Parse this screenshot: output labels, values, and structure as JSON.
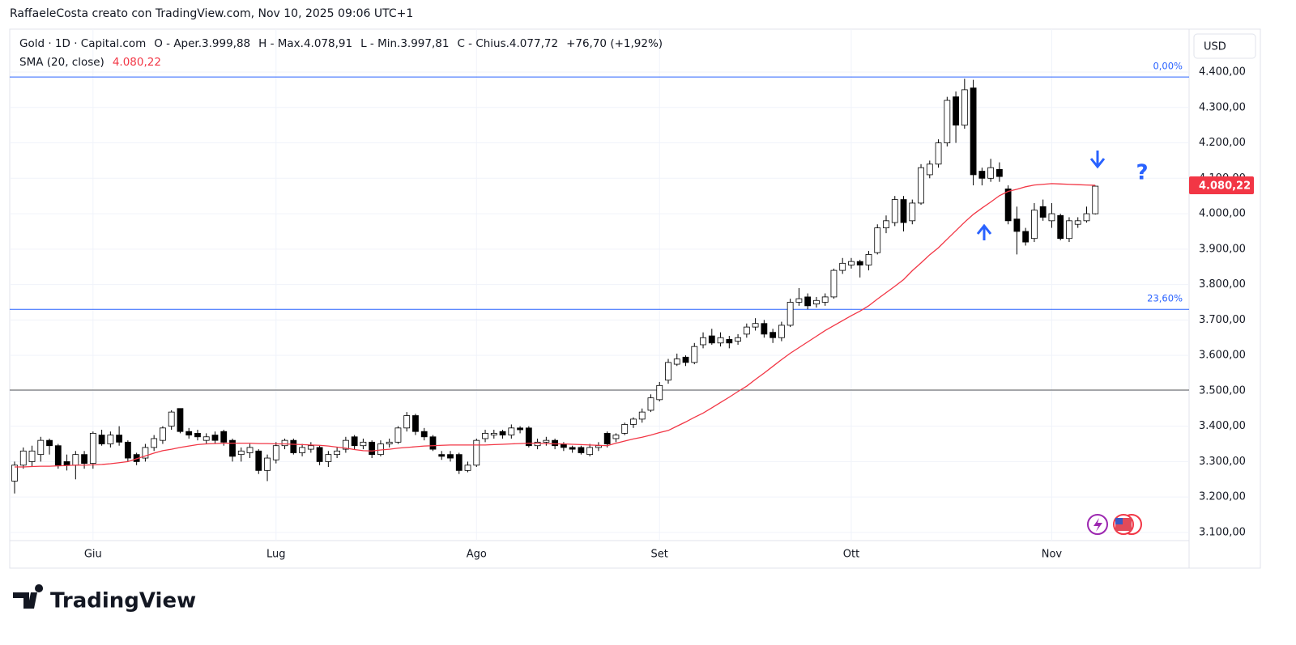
{
  "header": "RaffaeleCosta creato con TradingView.com, Nov 10, 2025 09:06 UTC+1",
  "logo": "TradingView",
  "chart_data": {
    "type": "candlestick",
    "legend_title": "Gold · 1D · Capital.com",
    "ohlc_text": [
      "O - Aper.3.999,88",
      "H - Max.4.078,91",
      "L - Min.3.997,81",
      "C - Chius.4.077,72"
    ],
    "change_text": "+76,70 (+1,92%)",
    "currency": "USD",
    "categories": [
      null,
      null,
      null,
      null,
      null,
      null,
      null,
      null,
      null,
      "Giu",
      null,
      null,
      null,
      null,
      null,
      null,
      null,
      null,
      null,
      null,
      null,
      null,
      null,
      null,
      null,
      null,
      null,
      null,
      null,
      null,
      "Lug",
      null,
      null,
      null,
      null,
      null,
      null,
      null,
      null,
      null,
      null,
      null,
      null,
      null,
      null,
      null,
      null,
      null,
      null,
      null,
      null,
      null,
      null,
      "Ago",
      null,
      null,
      null,
      null,
      null,
      null,
      null,
      null,
      null,
      null,
      null,
      null,
      null,
      null,
      null,
      null,
      null,
      null,
      null,
      null,
      "Set",
      null,
      null,
      null,
      null,
      null,
      null,
      null,
      null,
      null,
      null,
      null,
      null,
      null,
      null,
      null,
      null,
      null,
      null,
      null,
      null,
      null,
      "Ott",
      null,
      null,
      null,
      null,
      null,
      null,
      null,
      null,
      null,
      null,
      null,
      null,
      null,
      null,
      null,
      null,
      null,
      null,
      null,
      null,
      null,
      null,
      "Nov",
      null,
      null,
      null,
      null,
      null
    ],
    "open": [
      3245,
      3290,
      3300,
      3320,
      3360,
      3345,
      3300,
      3290,
      3320,
      3295,
      3375,
      3350,
      3375,
      3355,
      3320,
      3310,
      3340,
      3360,
      3400,
      3450,
      3385,
      3380,
      3360,
      3375,
      3385,
      3360,
      3320,
      3325,
      3330,
      3275,
      3305,
      3345,
      3360,
      3325,
      3335,
      3340,
      3300,
      3320,
      3335,
      3370,
      3345,
      3355,
      3320,
      3350,
      3355,
      3395,
      3430,
      3385,
      3370,
      3320,
      3320,
      3320,
      3275,
      3290,
      3365,
      3375,
      3385,
      3375,
      3395,
      3395,
      3345,
      3355,
      3360,
      3350,
      3340,
      3340,
      3320,
      3340,
      3380,
      3365,
      3380,
      3405,
      3420,
      3445,
      3475,
      3530,
      3575,
      3595,
      3580,
      3630,
      3655,
      3635,
      3645,
      3640,
      3660,
      3680,
      3690,
      3665,
      3650,
      3685,
      3750,
      3765,
      3745,
      3750,
      3765,
      3840,
      3855,
      3865,
      3855,
      3890,
      3960,
      3975,
      4040,
      3980,
      4030,
      4110,
      4140,
      4200,
      4330,
      4250,
      4355,
      4120,
      4100,
      4125,
      4070,
      3985,
      3950,
      3930,
      4020,
      3980,
      3995,
      3930,
      3970,
      3980,
      3999.88
    ],
    "high": [
      3300,
      3340,
      3345,
      3370,
      3365,
      3350,
      3320,
      3330,
      3330,
      3385,
      3390,
      3385,
      3400,
      3360,
      3325,
      3350,
      3375,
      3400,
      3445,
      3450,
      3395,
      3390,
      3380,
      3385,
      3390,
      3365,
      3340,
      3350,
      3335,
      3320,
      3355,
      3365,
      3365,
      3350,
      3355,
      3345,
      3330,
      3340,
      3370,
      3375,
      3365,
      3360,
      3360,
      3365,
      3400,
      3440,
      3435,
      3395,
      3375,
      3330,
      3330,
      3325,
      3300,
      3365,
      3390,
      3390,
      3390,
      3405,
      3400,
      3400,
      3365,
      3370,
      3365,
      3355,
      3345,
      3345,
      3350,
      3355,
      3385,
      3380,
      3410,
      3425,
      3450,
      3490,
      3525,
      3590,
      3605,
      3600,
      3635,
      3665,
      3675,
      3665,
      3655,
      3660,
      3690,
      3705,
      3700,
      3675,
      3695,
      3760,
      3790,
      3775,
      3765,
      3775,
      3845,
      3875,
      3875,
      3870,
      3895,
      3970,
      3995,
      4050,
      4050,
      4040,
      4140,
      4150,
      4210,
      4330,
      4345,
      4381,
      4378,
      4130,
      4155,
      4145,
      4080,
      4020,
      3960,
      4030,
      4040,
      4030,
      4000,
      3990,
      3990,
      4020,
      4078.91
    ],
    "low": [
      3210,
      3280,
      3285,
      3300,
      3320,
      3280,
      3275,
      3250,
      3280,
      3280,
      3345,
      3340,
      3345,
      3300,
      3290,
      3300,
      3330,
      3350,
      3390,
      3380,
      3365,
      3360,
      3350,
      3350,
      3345,
      3300,
      3300,
      3310,
      3265,
      3245,
      3295,
      3335,
      3320,
      3315,
      3325,
      3290,
      3285,
      3310,
      3325,
      3335,
      3335,
      3310,
      3315,
      3340,
      3350,
      3385,
      3375,
      3360,
      3330,
      3305,
      3300,
      3265,
      3270,
      3285,
      3355,
      3365,
      3365,
      3365,
      3380,
      3340,
      3335,
      3345,
      3335,
      3330,
      3325,
      3320,
      3315,
      3330,
      3340,
      3355,
      3375,
      3395,
      3410,
      3440,
      3470,
      3520,
      3570,
      3570,
      3575,
      3620,
      3630,
      3625,
      3620,
      3630,
      3650,
      3670,
      3650,
      3635,
      3640,
      3680,
      3740,
      3730,
      3735,
      3740,
      3760,
      3830,
      3845,
      3820,
      3840,
      3885,
      3945,
      3965,
      3950,
      3970,
      4025,
      4100,
      4130,
      4190,
      4200,
      4240,
      4080,
      4080,
      4090,
      4090,
      3970,
      3885,
      3910,
      3920,
      3980,
      3960,
      3925,
      3920,
      3960,
      3975,
      3997.81
    ],
    "close": [
      3290,
      3330,
      3330,
      3360,
      3345,
      3290,
      3290,
      3320,
      3295,
      3380,
      3350,
      3375,
      3355,
      3310,
      3300,
      3340,
      3365,
      3395,
      3440,
      3385,
      3375,
      3370,
      3370,
      3360,
      3355,
      3315,
      3330,
      3340,
      3275,
      3310,
      3345,
      3360,
      3325,
      3340,
      3345,
      3300,
      3320,
      3330,
      3360,
      3345,
      3355,
      3320,
      3350,
      3355,
      3395,
      3430,
      3385,
      3370,
      3335,
      3315,
      3310,
      3275,
      3290,
      3360,
      3380,
      3380,
      3375,
      3395,
      3390,
      3345,
      3355,
      3360,
      3345,
      3340,
      3335,
      3325,
      3340,
      3345,
      3350,
      3375,
      3405,
      3420,
      3440,
      3480,
      3515,
      3580,
      3590,
      3580,
      3625,
      3650,
      3635,
      3650,
      3635,
      3650,
      3680,
      3690,
      3660,
      3650,
      3685,
      3750,
      3760,
      3740,
      3755,
      3765,
      3840,
      3860,
      3865,
      3855,
      3885,
      3960,
      3980,
      4040,
      3975,
      4030,
      4130,
      4140,
      4200,
      4320,
      4250,
      4350,
      4110,
      4100,
      4130,
      4105,
      3980,
      3950,
      3920,
      4010,
      3990,
      4000,
      3930,
      3980,
      3980,
      4000,
      4077.72
    ],
    "up_color": "#ffffff",
    "down_color": "#000000",
    "wick_color": "#000000",
    "sma": {
      "name": "SMA (20, close)",
      "value_label": "4.080,22",
      "color": "#f23645",
      "values": [
        3285,
        3285,
        3286,
        3287,
        3287,
        3288,
        3289,
        3290,
        3290,
        3291,
        3292,
        3294,
        3297,
        3300,
        3308,
        3316,
        3324,
        3331,
        3335,
        3340,
        3344,
        3348,
        3350,
        3351,
        3352,
        3352,
        3352,
        3352,
        3351,
        3351,
        3350,
        3350,
        3349,
        3348,
        3347,
        3346,
        3344,
        3341,
        3338,
        3334,
        3331,
        3330,
        3333,
        3335,
        3338,
        3340,
        3342,
        3344,
        3345,
        3346,
        3347,
        3347,
        3347,
        3347,
        3347,
        3348,
        3349,
        3350,
        3351,
        3352,
        3352,
        3351,
        3350,
        3350,
        3349,
        3348,
        3347,
        3346,
        3345,
        3352,
        3358,
        3364,
        3369,
        3375,
        3382,
        3388,
        3400,
        3412,
        3425,
        3437,
        3452,
        3467,
        3482,
        3498,
        3513,
        3532,
        3550,
        3569,
        3588,
        3606,
        3622,
        3638,
        3654,
        3670,
        3684,
        3698,
        3712,
        3725,
        3740,
        3759,
        3777,
        3795,
        3814,
        3839,
        3861,
        3884,
        3904,
        3928,
        3952,
        3976,
        3998,
        4016,
        4033,
        4051,
        4063,
        4069,
        4076,
        4081,
        4083,
        4085,
        4084,
        4083,
        4082,
        4081,
        4080.22
      ]
    },
    "ylim": [
      3077,
      4512
    ],
    "yticks": [
      {
        "value": 3100,
        "label": "3.100,00"
      },
      {
        "value": 3200,
        "label": "3.200,00"
      },
      {
        "value": 3300,
        "label": "3.300,00"
      },
      {
        "value": 3400,
        "label": "3.400,00"
      },
      {
        "value": 3500,
        "label": "3.500,00"
      },
      {
        "value": 3600,
        "label": "3.600,00"
      },
      {
        "value": 3700,
        "label": "3.700,00"
      },
      {
        "value": 3800,
        "label": "3.800,00"
      },
      {
        "value": 3900,
        "label": "3.900,00"
      },
      {
        "value": 4000,
        "label": "4.000,00"
      },
      {
        "value": 4100,
        "label": "4.100,00"
      },
      {
        "value": 4200,
        "label": "4.200,00"
      },
      {
        "value": 4300,
        "label": "4.300,00"
      },
      {
        "value": 4400,
        "label": "4.400,00"
      }
    ],
    "grid": true,
    "fib_levels": [
      {
        "value": 4386,
        "label": "0,00%"
      },
      {
        "value": 3730,
        "label": "23,60%"
      }
    ],
    "fib_color": "#2962ff",
    "hlines": [
      3502
    ],
    "last_price": {
      "value": 4080.22,
      "label": "4.080,22"
    },
    "annotation": "?"
  }
}
